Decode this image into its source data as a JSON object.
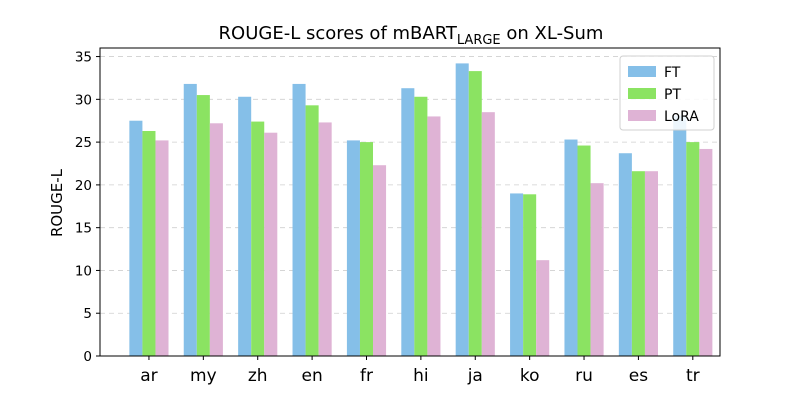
{
  "chart_data": {
    "type": "bar",
    "title": {
      "prefix": "ROUGE-L scores of mBART",
      "subscript": "LARGE",
      "suffix": " on XL-Sum"
    },
    "xlabel": "",
    "ylabel": "ROUGE-L",
    "ylim": [
      0,
      36
    ],
    "yticks": [
      0,
      5,
      10,
      15,
      20,
      25,
      30,
      35
    ],
    "grid": true,
    "legend_position": "top-right",
    "categories": [
      "ar",
      "my",
      "zh",
      "en",
      "fr",
      "hi",
      "ja",
      "ko",
      "ru",
      "es",
      "tr"
    ],
    "series": [
      {
        "name": "FT",
        "color": "#85bfe8",
        "values": [
          27.5,
          31.8,
          30.3,
          31.8,
          25.2,
          31.3,
          34.2,
          19.0,
          25.3,
          23.7,
          28.1
        ]
      },
      {
        "name": "PT",
        "color": "#8be362",
        "values": [
          26.3,
          30.5,
          27.4,
          29.3,
          25.0,
          30.3,
          33.3,
          18.9,
          24.6,
          21.6,
          25.0
        ]
      },
      {
        "name": "LoRA",
        "color": "#dfb3d5",
        "values": [
          25.2,
          27.2,
          26.1,
          27.3,
          22.3,
          28.0,
          28.5,
          11.2,
          20.2,
          21.6,
          24.2
        ]
      }
    ]
  }
}
